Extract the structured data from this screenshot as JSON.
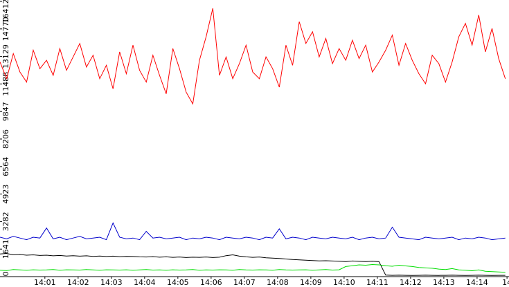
{
  "chart_data": {
    "type": "line",
    "x": [
      -0.35,
      -0.15,
      0.05,
      0.25,
      0.45,
      0.65,
      0.85,
      1.05,
      1.25,
      1.45,
      1.65,
      1.85,
      2.05,
      2.25,
      2.45,
      2.65,
      2.85,
      3.05,
      3.25,
      3.45,
      3.65,
      3.85,
      4.05,
      4.25,
      4.45,
      4.65,
      4.85,
      5.05,
      5.25,
      5.45,
      5.65,
      5.85,
      6.05,
      6.25,
      6.45,
      6.65,
      6.85,
      7.05,
      7.25,
      7.45,
      7.65,
      7.85,
      8.05,
      8.25,
      8.45,
      8.65,
      8.85,
      9.05,
      9.25,
      9.45,
      9.65,
      9.85,
      10.05,
      10.25,
      10.45,
      10.65,
      10.85,
      11.05,
      11.25,
      11.45,
      11.65,
      11.85,
      12.05,
      12.25,
      12.45,
      12.65,
      12.85,
      13.05,
      13.25,
      13.45,
      13.65,
      13.85,
      14.05,
      14.25,
      14.45,
      14.65,
      14.85
    ],
    "series": [
      {
        "color": "#ff0000",
        "values": [
          12800,
          11800,
          13300,
          12200,
          11600,
          13500,
          12400,
          12900,
          12000,
          13600,
          12300,
          13100,
          13900,
          12500,
          13200,
          11800,
          12600,
          11200,
          13400,
          12100,
          13800,
          12300,
          11600,
          13200,
          12000,
          10900,
          13600,
          12400,
          11000,
          10300,
          12900,
          14300,
          16000,
          12000,
          13100,
          11800,
          12700,
          13800,
          12200,
          11800,
          13100,
          12400,
          11300,
          13800,
          12600,
          15200,
          13900,
          14600,
          13100,
          14200,
          12700,
          13600,
          12900,
          14100,
          13000,
          13800,
          12200,
          12800,
          13500,
          14400,
          12600,
          13900,
          12900,
          12100,
          11500,
          13200,
          12700,
          11600,
          12800,
          14300,
          15100,
          13800,
          15600,
          13400,
          14800,
          13000,
          11800
        ]
      },
      {
        "color": "#0000cc",
        "values": [
          2350,
          2250,
          2400,
          2300,
          2200,
          2350,
          2300,
          2900,
          2250,
          2350,
          2200,
          2300,
          2400,
          2250,
          2300,
          2350,
          2200,
          3200,
          2350,
          2250,
          2300,
          2200,
          2700,
          2300,
          2350,
          2250,
          2300,
          2350,
          2200,
          2300,
          2250,
          2350,
          2300,
          2200,
          2350,
          2300,
          2250,
          2350,
          2300,
          2200,
          2350,
          2300,
          2850,
          2250,
          2350,
          2300,
          2200,
          2350,
          2300,
          2250,
          2350,
          2300,
          2250,
          2350,
          2200,
          2300,
          2350,
          2250,
          2300,
          2950,
          2350,
          2300,
          2250,
          2200,
          2350,
          2300,
          2250,
          2300,
          2350,
          2200,
          2300,
          2250,
          2350,
          2300,
          2200,
          2250,
          2300
        ]
      },
      {
        "color": "#000000",
        "values": [
          1350,
          1380,
          1300,
          1320,
          1280,
          1300,
          1260,
          1280,
          1240,
          1260,
          1230,
          1250,
          1220,
          1240,
          1210,
          1230,
          1200,
          1220,
          1190,
          1210,
          1200,
          1180,
          1170,
          1190,
          1160,
          1180,
          1150,
          1170,
          1140,
          1160,
          1150,
          1170,
          1140,
          1160,
          1250,
          1300,
          1220,
          1180,
          1150,
          1170,
          1120,
          1100,
          1080,
          1050,
          1020,
          1000,
          980,
          960,
          940,
          950,
          930,
          920,
          900,
          930,
          910,
          900,
          920,
          890,
          90,
          80,
          85,
          80,
          75,
          80,
          85,
          80,
          75,
          80,
          85,
          80,
          75,
          80,
          85,
          80,
          75,
          80,
          80
        ]
      },
      {
        "color": "#00dd00",
        "values": [
          380,
          360,
          420,
          400,
          380,
          410,
          390,
          400,
          420,
          380,
          410,
          400,
          390,
          420,
          400,
          380,
          410,
          400,
          390,
          410,
          380,
          400,
          420,
          390,
          400,
          380,
          410,
          390,
          400,
          420,
          380,
          400,
          390,
          410,
          400,
          380,
          420,
          400,
          390,
          410,
          400,
          380,
          420,
          400,
          390,
          400,
          410,
          380,
          400,
          420,
          390,
          410,
          600,
          650,
          700,
          680,
          720,
          700,
          650,
          620,
          680,
          640,
          600,
          550,
          520,
          500,
          450,
          420,
          480,
          400,
          380,
          350,
          400,
          320,
          300,
          280,
          260
        ]
      }
    ],
    "xlim": [
      -0.35,
      14.96
    ],
    "xticks": [
      {
        "value": 1,
        "label": "14:01"
      },
      {
        "value": 2,
        "label": "14:02"
      },
      {
        "value": 3,
        "label": "14:03"
      },
      {
        "value": 4,
        "label": "14:04"
      },
      {
        "value": 5,
        "label": "14:05"
      },
      {
        "value": 6,
        "label": "14:06"
      },
      {
        "value": 7,
        "label": "14:07"
      },
      {
        "value": 8,
        "label": "14:08"
      },
      {
        "value": 9,
        "label": "14:09"
      },
      {
        "value": 10,
        "label": "14:10"
      },
      {
        "value": 11,
        "label": "14:11"
      },
      {
        "value": 12,
        "label": "14:12"
      },
      {
        "value": 13,
        "label": "14:13"
      },
      {
        "value": 14,
        "label": "14:14"
      },
      {
        "value": 14.9,
        "label": "14"
      }
    ],
    "ylim": [
      0,
      16412
    ],
    "yticks": [
      0,
      1641,
      3282,
      4923,
      6564,
      8206,
      9847,
      11488,
      13129,
      14770,
      16412
    ]
  }
}
